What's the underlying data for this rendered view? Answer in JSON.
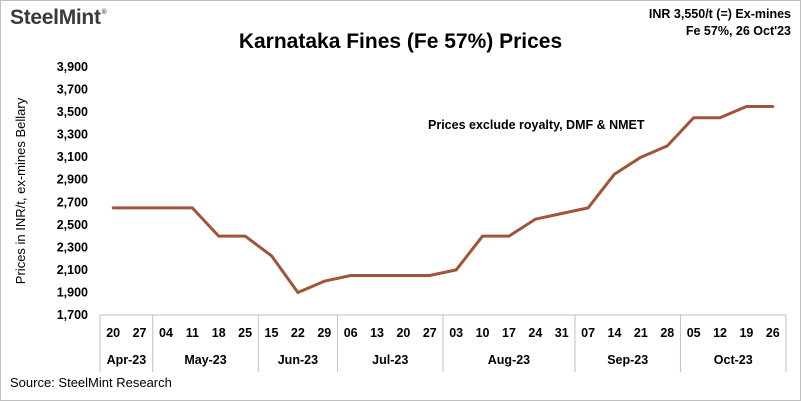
{
  "header": {
    "logo": "SteelMint",
    "logo_mark": "®",
    "info_line1": "INR 3,550/t (=) Ex-mines",
    "info_line2": "Fe 57%, 26 Oct'23"
  },
  "footer": {
    "source": "Source:  SteelMint Research"
  },
  "chart_data": {
    "type": "line",
    "title": "Karnataka Fines (Fe 57%) Prices",
    "ylabel": "Prices in INR/t, ex-mines Bellary",
    "xlabel": "",
    "annotation": "Prices exclude royalty, DMF & NMET",
    "ylim": [
      1700,
      3900
    ],
    "yticks": [
      "1,700",
      "1,900",
      "2,100",
      "2,300",
      "2,500",
      "2,700",
      "2,900",
      "3,100",
      "3,300",
      "3,500",
      "3,700",
      "3,900"
    ],
    "grid": false,
    "line_color": "#a0553a",
    "categories": [
      "20",
      "27",
      "04",
      "11",
      "18",
      "25",
      "15",
      "22",
      "29",
      "06",
      "13",
      "20",
      "27",
      "03",
      "10",
      "17",
      "24",
      "31",
      "07",
      "14",
      "21",
      "28",
      "05",
      "12",
      "19",
      "26"
    ],
    "month_groups": [
      {
        "label": "Apr-23",
        "count": 2
      },
      {
        "label": "May-23",
        "count": 4
      },
      {
        "label": "Jun-23",
        "count": 3
      },
      {
        "label": "Jul-23",
        "count": 4
      },
      {
        "label": "Aug-23",
        "count": 5
      },
      {
        "label": "Sep-23",
        "count": 4
      },
      {
        "label": "Oct-23",
        "count": 4
      }
    ],
    "series": [
      {
        "values": [
          2650,
          2650,
          2650,
          2650,
          2400,
          2400,
          2225,
          1900,
          2000,
          2050,
          2050,
          2050,
          2050,
          2100,
          2400,
          2400,
          2550,
          2600,
          2650,
          2950,
          3100,
          3200,
          3450,
          3450,
          3550,
          3550
        ]
      }
    ]
  }
}
